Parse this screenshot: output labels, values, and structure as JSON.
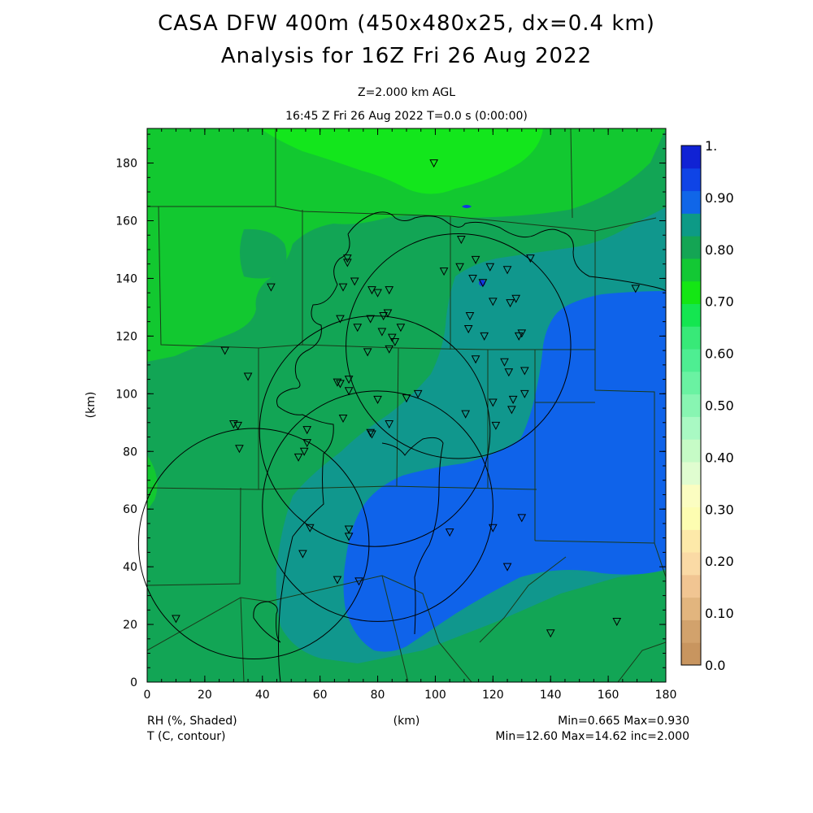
{
  "header": {
    "title_line1": "CASA DFW 400m (450x480x25, dx=0.4 km)",
    "title_line2": "Analysis for 16Z Fri 26 Aug 2022",
    "level": "Z=2.000 km AGL",
    "time": "16:45 Z Fri 26 Aug 2022    T=0.0 s (0:00:00)"
  },
  "axes": {
    "x_label": "(km)",
    "y_label": "(km)",
    "x_ticks": [
      "0",
      "20",
      "40",
      "60",
      "80",
      "100",
      "120",
      "140",
      "160",
      "180"
    ],
    "y_ticks": [
      "0",
      "20",
      "40",
      "60",
      "80",
      "100",
      "120",
      "140",
      "160",
      "180"
    ],
    "x_range": [
      0,
      180
    ],
    "y_range": [
      0,
      192
    ]
  },
  "colorbar": {
    "labels": [
      "0.0",
      "0.10",
      "0.20",
      "0.30",
      "0.40",
      "0.50",
      "0.60",
      "0.70",
      "0.80",
      "0.90",
      "1."
    ],
    "colors": [
      "#c8955f",
      "#d2a26c",
      "#e2b57e",
      "#f1c592",
      "#fadaa5",
      "#fde9a9",
      "#fdfdb1",
      "#fbfdc1",
      "#e0fdd0",
      "#c6fbc6",
      "#a9f9c3",
      "#88f5b2",
      "#6af2a2",
      "#4eee92",
      "#38e978",
      "#14e650",
      "#14e614",
      "#13c834",
      "#14a554",
      "#0d9a86",
      "#1066e8",
      "#0f44e6",
      "#1022d4"
    ]
  },
  "footer": {
    "left1": "RH (%, Shaded)",
    "left2": "T (C, contour)",
    "center": "(km)",
    "right1": "Min=0.665 Max=0.930",
    "right2": "Min=12.60 Max=14.62 inc=2.000"
  },
  "map": {
    "colors": {
      "bright_green": "#13e61c",
      "green": "#12c830",
      "teal_green": "#12a555",
      "teal": "#10978d",
      "blue": "#0f63ea",
      "dark_blue": "#1238e2"
    },
    "stations_km": [
      [
        99.5,
        180
      ],
      [
        109,
        153.5
      ],
      [
        114,
        146.5
      ],
      [
        119,
        144
      ],
      [
        125,
        143
      ],
      [
        133,
        147
      ],
      [
        103,
        142.5
      ],
      [
        113,
        140
      ],
      [
        108.5,
        144
      ],
      [
        116.5,
        138.5
      ],
      [
        112,
        127
      ],
      [
        117,
        120
      ],
      [
        111.5,
        122.5
      ],
      [
        120,
        132
      ],
      [
        126,
        131.5
      ],
      [
        128,
        133
      ],
      [
        124,
        111
      ],
      [
        125.5,
        107.5
      ],
      [
        131,
        108
      ],
      [
        130,
        121
      ],
      [
        129,
        120
      ],
      [
        114,
        112
      ],
      [
        131,
        100
      ],
      [
        127,
        98
      ],
      [
        126.5,
        94.5
      ],
      [
        120,
        97
      ],
      [
        121,
        89
      ],
      [
        110.5,
        93
      ],
      [
        94,
        100
      ],
      [
        90,
        98.5
      ],
      [
        80,
        98
      ],
      [
        27,
        115
      ],
      [
        35,
        106
      ],
      [
        43,
        137
      ],
      [
        30,
        89.5
      ],
      [
        31.5,
        89
      ],
      [
        32,
        81
      ],
      [
        68,
        137
      ],
      [
        69.5,
        147
      ],
      [
        69.5,
        145.5
      ],
      [
        72,
        139
      ],
      [
        78,
        136
      ],
      [
        80,
        135
      ],
      [
        84,
        136
      ],
      [
        83.5,
        128
      ],
      [
        82,
        127
      ],
      [
        81.5,
        121.5
      ],
      [
        85,
        119.5
      ],
      [
        86,
        118
      ],
      [
        84,
        115.5
      ],
      [
        88,
        123
      ],
      [
        76.5,
        114.5
      ],
      [
        73,
        123
      ],
      [
        77.5,
        126
      ],
      [
        67,
        126
      ],
      [
        66,
        104
      ],
      [
        67,
        103.5
      ],
      [
        70,
        105
      ],
      [
        70,
        101
      ],
      [
        68,
        91.5
      ],
      [
        77.5,
        86.5
      ],
      [
        78,
        86
      ],
      [
        84,
        89.5
      ],
      [
        55.5,
        87.5
      ],
      [
        55.5,
        83
      ],
      [
        52.5,
        78
      ],
      [
        54.5,
        80
      ],
      [
        56.5,
        53.5
      ],
      [
        70,
        53
      ],
      [
        70,
        50.5
      ],
      [
        54,
        44.5
      ],
      [
        66,
        35.5
      ],
      [
        105,
        52
      ],
      [
        120,
        53.5
      ],
      [
        130,
        57
      ],
      [
        125,
        40
      ],
      [
        140,
        17
      ],
      [
        163,
        21
      ],
      [
        169.5,
        136.5
      ],
      [
        10,
        22
      ],
      [
        73.5,
        35
      ]
    ],
    "radar_circles_km": [
      {
        "center": [
          108,
          116.5
        ],
        "radius": 39
      },
      {
        "center": [
          79,
          87
        ],
        "radius": 40
      },
      {
        "center": [
          80,
          61
        ],
        "radius": 40
      },
      {
        "center": [
          37,
          48
        ],
        "radius": 40
      }
    ],
    "speckle_km": [
      [
        111,
        165.5
      ],
      [
        117,
        138.5
      ]
    ]
  }
}
